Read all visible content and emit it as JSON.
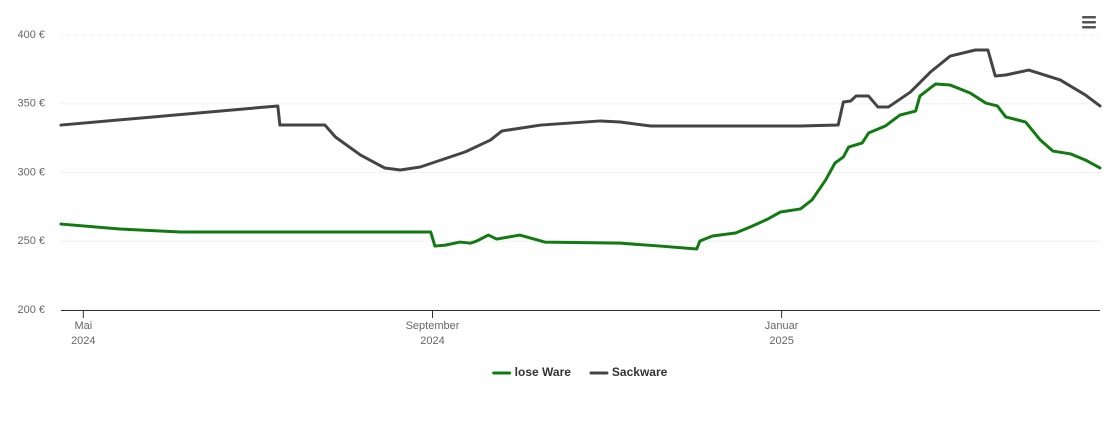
{
  "chart_data": {
    "type": "line",
    "xlim": [
      2024.312,
      2025.304
    ],
    "xticks": [
      {
        "value": 2024.3333,
        "label": [
          "Mai",
          "2024"
        ]
      },
      {
        "value": 2024.6667,
        "label": [
          "September",
          "2024"
        ]
      },
      {
        "value": 2025.0,
        "label": [
          "Januar",
          "2025"
        ]
      }
    ],
    "ylim": [
      200,
      400
    ],
    "yticks": [
      {
        "value": 200,
        "label": "200 €"
      },
      {
        "value": 250,
        "label": "250 €"
      },
      {
        "value": 300,
        "label": "300 €"
      },
      {
        "value": 350,
        "label": "350 €"
      },
      {
        "value": 400,
        "label": "400 €"
      }
    ],
    "grid": true,
    "legend": "bottom",
    "series": [
      {
        "name": "lose Ware",
        "color": "#117a11",
        "x": [
          2024.312,
          2024.368,
          2024.426,
          2024.54,
          2024.665,
          2024.669,
          2024.679,
          2024.693,
          2024.703,
          2024.709,
          2024.72,
          2024.728,
          2024.75,
          2024.774,
          2024.846,
          2024.884,
          2024.919,
          2024.922,
          2024.934,
          2024.956,
          2024.97,
          2024.987,
          2024.999,
          2025.018,
          2025.029,
          2025.042,
          2025.051,
          2025.059,
          2025.064,
          2025.077,
          2025.083,
          2025.099,
          2025.113,
          2025.128,
          2025.132,
          2025.147,
          2025.161,
          2025.18,
          2025.195,
          2025.206,
          2025.214,
          2025.233,
          2025.247,
          2025.259,
          2025.276,
          2025.29,
          2025.304
        ],
        "values": [
          262.5,
          258.9,
          256.7,
          256.7,
          256.7,
          246.5,
          247.2,
          249.4,
          248.6,
          250.2,
          254.5,
          251.6,
          254.5,
          249.4,
          248.6,
          246.5,
          244.4,
          250.2,
          253.8,
          256,
          260.4,
          266.2,
          271.3,
          273.5,
          280,
          294.5,
          306.9,
          311.3,
          318.5,
          321.5,
          328.7,
          333.8,
          341.8,
          344.7,
          355.6,
          364.4,
          363.6,
          357.8,
          350.5,
          348.4,
          340.4,
          336.7,
          323.6,
          315.6,
          313.5,
          309.1,
          303.3
        ]
      },
      {
        "name": "Sackware",
        "color": "#444444",
        "x": [
          2024.312,
          2024.519,
          2024.521,
          2024.564,
          2024.574,
          2024.598,
          2024.621,
          2024.636,
          2024.655,
          2024.698,
          2024.722,
          2024.733,
          2024.77,
          2024.827,
          2024.846,
          2024.875,
          2024.922,
          2025.018,
          2025.054,
          2025.059,
          2025.066,
          2025.071,
          2025.083,
          2025.092,
          2025.102,
          2025.123,
          2025.142,
          2025.161,
          2025.185,
          2025.197,
          2025.204,
          2025.214,
          2025.236,
          2025.266,
          2025.29,
          2025.304
        ],
        "values": [
          334.5,
          348.4,
          334.5,
          334.5,
          325.8,
          312.7,
          303.3,
          301.8,
          304,
          315,
          323.6,
          330.2,
          334.5,
          337.5,
          336.7,
          333.8,
          333.8,
          333.8,
          334.5,
          351.3,
          352,
          355.6,
          355.6,
          347.6,
          347.6,
          358.5,
          373,
          384.7,
          389.1,
          389.1,
          370.2,
          370.9,
          374.5,
          367.3,
          356.4,
          348.4
        ]
      }
    ]
  }
}
